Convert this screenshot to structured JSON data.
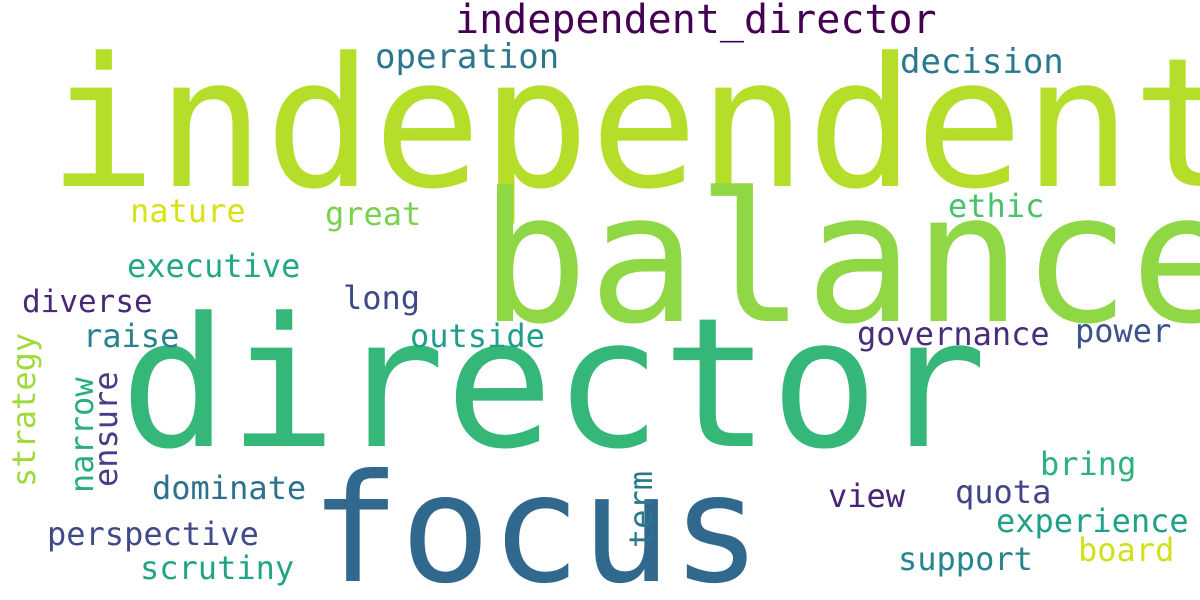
{
  "words": {
    "independent": {
      "text": "independent",
      "color": "#b5de2b"
    },
    "balance": {
      "text": "balance",
      "color": "#8fd744"
    },
    "director": {
      "text": "director",
      "color": "#35b779"
    },
    "focus": {
      "text": "focus",
      "color": "#31688e"
    },
    "independent_director": {
      "text": "independent_director",
      "color": "#440154"
    },
    "operation": {
      "text": "operation",
      "color": "#2a788e"
    },
    "decision": {
      "text": "decision",
      "color": "#2a788e"
    },
    "nature": {
      "text": "nature",
      "color": "#d8e219"
    },
    "great": {
      "text": "great",
      "color": "#7ad151"
    },
    "ethic": {
      "text": "ethic",
      "color": "#4ac16d"
    },
    "executive": {
      "text": "executive",
      "color": "#22a884"
    },
    "diverse": {
      "text": "diverse",
      "color": "#482878"
    },
    "long": {
      "text": "long",
      "color": "#3e4989"
    },
    "raise": {
      "text": "raise",
      "color": "#26828e"
    },
    "outside": {
      "text": "outside",
      "color": "#1f9e89"
    },
    "governance": {
      "text": "governance",
      "color": "#472d7b"
    },
    "power": {
      "text": "power",
      "color": "#3b528b"
    },
    "bring": {
      "text": "bring",
      "color": "#2db27d"
    },
    "dominate": {
      "text": "dominate",
      "color": "#2c728e"
    },
    "view": {
      "text": "view",
      "color": "#482475"
    },
    "quota": {
      "text": "quota",
      "color": "#414487"
    },
    "experience": {
      "text": "experience",
      "color": "#1fa188"
    },
    "perspective": {
      "text": "perspective",
      "color": "#3e4a89"
    },
    "board": {
      "text": "board",
      "color": "#d0e11c"
    },
    "support": {
      "text": "support",
      "color": "#25858e"
    },
    "scrutiny": {
      "text": "scrutiny",
      "color": "#20a486"
    },
    "strategy": {
      "text": "strategy",
      "color": "#a0da39"
    },
    "narrow": {
      "text": "narrow",
      "color": "#28ae80"
    },
    "ensure": {
      "text": "ensure",
      "color": "#433e85"
    },
    "term": {
      "text": "term",
      "color": "#2a788e"
    }
  }
}
